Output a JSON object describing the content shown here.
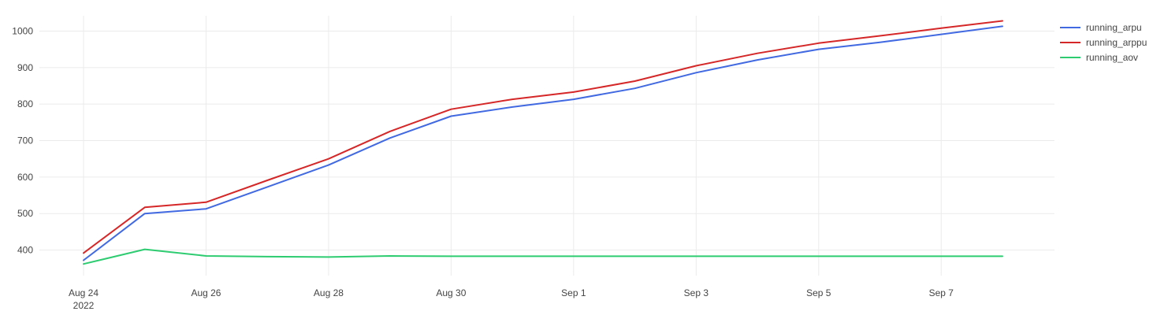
{
  "chart_data": {
    "type": "line",
    "x": [
      "2022-08-24",
      "2022-08-25",
      "2022-08-26",
      "2022-08-27",
      "2022-08-28",
      "2022-08-29",
      "2022-08-30",
      "2022-08-31",
      "2022-09-01",
      "2022-09-02",
      "2022-09-03",
      "2022-09-04",
      "2022-09-05",
      "2022-09-06",
      "2022-09-07",
      "2022-09-08"
    ],
    "series": [
      {
        "name": "running_arpu",
        "color": "#4169e1",
        "values": [
          372,
          500,
          513,
          573,
          633,
          707,
          767,
          792,
          813,
          843,
          886,
          921,
          950,
          969,
          991,
          1013
        ]
      },
      {
        "name": "running_arppu",
        "color": "#d62728",
        "values": [
          392,
          517,
          531,
          591,
          650,
          725,
          786,
          813,
          833,
          863,
          905,
          939,
          967,
          987,
          1008,
          1028
        ]
      },
      {
        "name": "running_aov",
        "color": "#2ecc71",
        "values": [
          362,
          402,
          384,
          382,
          381,
          384,
          383,
          383,
          383,
          383,
          383,
          383,
          383,
          383,
          383,
          383
        ]
      }
    ],
    "ylim": [
      330,
      1042
    ],
    "yticks": [
      400,
      500,
      600,
      700,
      800,
      900,
      1000
    ],
    "xticks": [
      {
        "date": "2022-08-24",
        "label": "Aug 24",
        "sublabel": "2022"
      },
      {
        "date": "2022-08-26",
        "label": "Aug 26",
        "sublabel": ""
      },
      {
        "date": "2022-08-28",
        "label": "Aug 28",
        "sublabel": ""
      },
      {
        "date": "2022-08-30",
        "label": "Aug 30",
        "sublabel": ""
      },
      {
        "date": "2022-09-01",
        "label": "Sep 1",
        "sublabel": ""
      },
      {
        "date": "2022-09-03",
        "label": "Sep 3",
        "sublabel": ""
      },
      {
        "date": "2022-09-05",
        "label": "Sep 5",
        "sublabel": ""
      },
      {
        "date": "2022-09-07",
        "label": "Sep 7",
        "sublabel": ""
      }
    ],
    "xlim": [
      "2022-08-24",
      "2022-09-08"
    ],
    "grid": true,
    "legend_position": "top-right",
    "title": "",
    "xlabel": "",
    "ylabel": ""
  }
}
